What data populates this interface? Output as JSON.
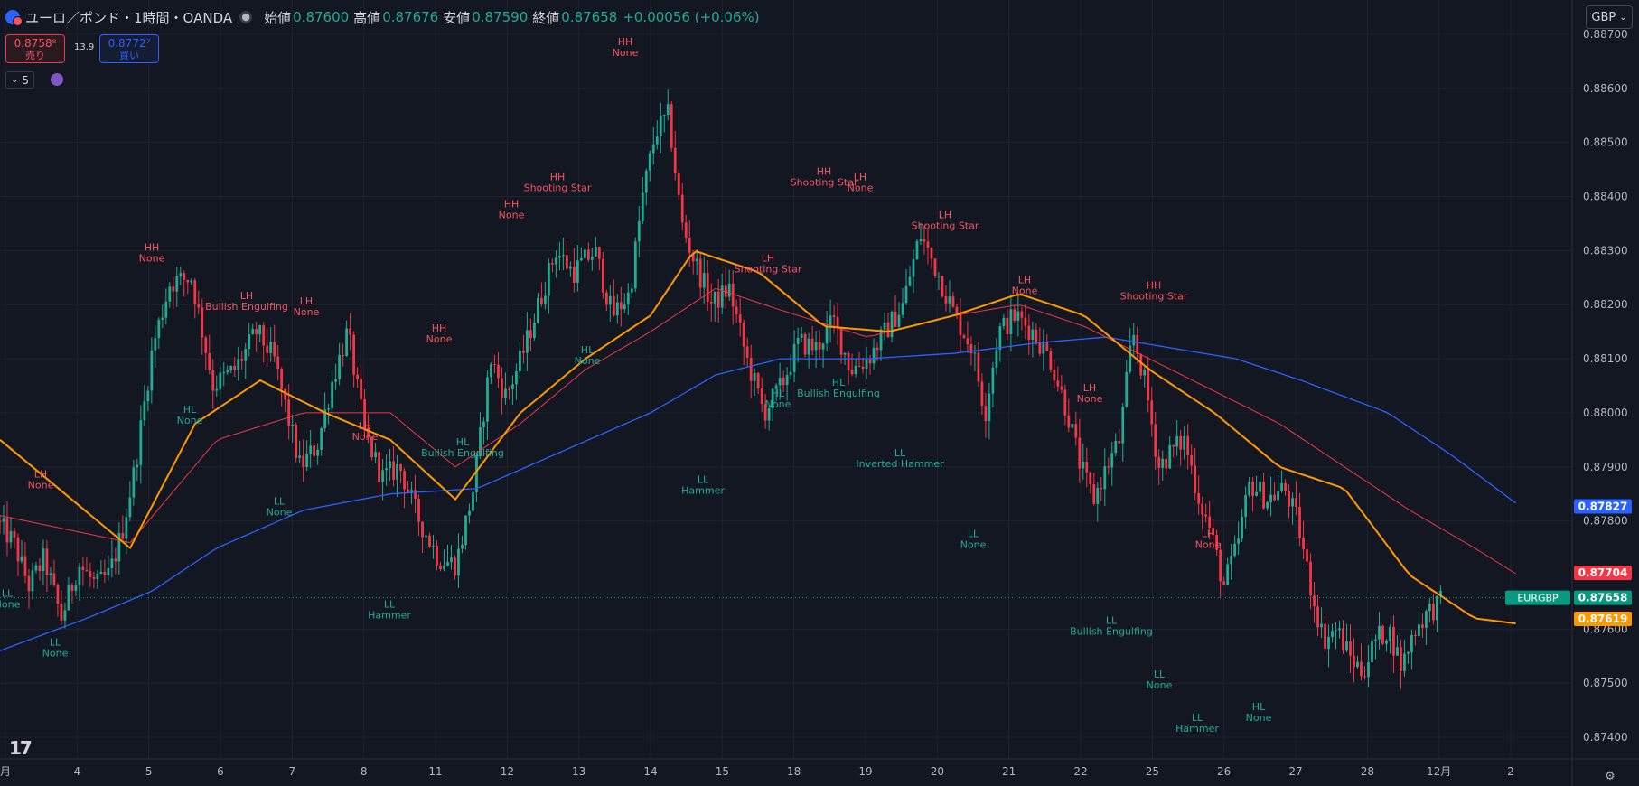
{
  "header": {
    "title": "ユーロ／ポンド・1時間・OANDA",
    "open_label": "始値",
    "open": "0.87600",
    "high_label": "高値",
    "high": "0.87676",
    "low_label": "安値",
    "low": "0.87590",
    "close_label": "終値",
    "close": "0.87658",
    "change": "+0.00056 (+0.06%)"
  },
  "trade": {
    "sell_price": "0.8758⁸",
    "sell_label": "売り",
    "spread": "13.9",
    "buy_price": "0.8772⁷",
    "buy_label": "買い"
  },
  "indicator_toggle": "5",
  "currency": "GBP",
  "colors": {
    "background": "#131722",
    "grid": "#1e222d",
    "up": "#22ab94",
    "down": "#f23645",
    "ema_fast": "#ff9800",
    "ema_mid": "#f23645",
    "ema_slow": "#2962ff",
    "label_high": "#f7525f",
    "label_low": "#22ab94"
  },
  "icons": [
    "symbol-flag-icon",
    "chevron-down-icon",
    "indicator-icon",
    "tradingview-logo-icon",
    "settings-icon"
  ],
  "chart_data": {
    "type": "candlestick",
    "symbol": "EURGBP",
    "timeframe": "1時間",
    "ylim": [
      0.8736,
      0.8875
    ],
    "y_ticks": [
      "0.88700",
      "0.88600",
      "0.88500",
      "0.88400",
      "0.88300",
      "0.88200",
      "0.88100",
      "0.88000",
      "0.87900",
      "0.87800",
      "0.87600",
      "0.87500",
      "0.87400"
    ],
    "x_ticks": [
      "月",
      "4",
      "5",
      "6",
      "7",
      "8",
      "11",
      "12",
      "13",
      "14",
      "15",
      "18",
      "19",
      "20",
      "21",
      "22",
      "25",
      "26",
      "27",
      "28",
      "12月",
      "2"
    ],
    "n_bars": 400,
    "price_labels": [
      {
        "text": "0.87827",
        "value": 0.87827,
        "color": "#2962ff"
      },
      {
        "text": "0.87704",
        "value": 0.87704,
        "color": "#f23645"
      },
      {
        "symbol": "EURGBP",
        "text": "0.87658",
        "value": 0.87658,
        "color": "#089981"
      },
      {
        "text": "0.87619",
        "value": 0.87619,
        "color": "#ff9800"
      }
    ],
    "current_price": 0.87658,
    "price_path": [
      [
        0,
        0.878
      ],
      [
        8,
        0.8776
      ],
      [
        15,
        0.8768
      ],
      [
        22,
        0.8773
      ],
      [
        30,
        0.8762
      ],
      [
        38,
        0.8772
      ],
      [
        46,
        0.8768
      ],
      [
        52,
        0.877
      ],
      [
        58,
        0.8778
      ],
      [
        64,
        0.879
      ],
      [
        72,
        0.8812
      ],
      [
        80,
        0.8824
      ],
      [
        90,
        0.8825
      ],
      [
        100,
        0.8805
      ],
      [
        110,
        0.8808
      ],
      [
        120,
        0.8815
      ],
      [
        128,
        0.881
      ],
      [
        134,
        0.88
      ],
      [
        140,
        0.879
      ],
      [
        148,
        0.8794
      ],
      [
        155,
        0.8806
      ],
      [
        162,
        0.8815
      ],
      [
        170,
        0.8796
      ],
      [
        178,
        0.8788
      ],
      [
        186,
        0.879
      ],
      [
        194,
        0.8781
      ],
      [
        204,
        0.8773
      ],
      [
        212,
        0.8772
      ],
      [
        220,
        0.8786
      ],
      [
        228,
        0.881
      ],
      [
        235,
        0.8803
      ],
      [
        242,
        0.881
      ],
      [
        250,
        0.882
      ],
      [
        258,
        0.883
      ],
      [
        266,
        0.8826
      ],
      [
        276,
        0.883
      ],
      [
        284,
        0.8818
      ],
      [
        292,
        0.8822
      ],
      [
        298,
        0.884
      ],
      [
        304,
        0.8852
      ],
      [
        310,
        0.8855
      ],
      [
        316,
        0.8835
      ],
      [
        322,
        0.8828
      ],
      [
        330,
        0.882
      ],
      [
        338,
        0.8823
      ],
      [
        346,
        0.881
      ],
      [
        354,
        0.88
      ],
      [
        362,
        0.8805
      ],
      [
        370,
        0.8813
      ],
      [
        378,
        0.8812
      ],
      [
        386,
        0.8817
      ],
      [
        394,
        0.8808
      ],
      [
        402,
        0.881
      ],
      [
        410,
        0.8815
      ],
      [
        418,
        0.882
      ],
      [
        426,
        0.8833
      ],
      [
        434,
        0.8826
      ],
      [
        442,
        0.8818
      ],
      [
        450,
        0.8812
      ],
      [
        456,
        0.88
      ],
      [
        462,
        0.8815
      ],
      [
        470,
        0.8818
      ],
      [
        478,
        0.8815
      ],
      [
        486,
        0.881
      ],
      [
        494,
        0.88
      ],
      [
        500,
        0.879
      ],
      [
        506,
        0.8784
      ],
      [
        512,
        0.879
      ],
      [
        518,
        0.8795
      ],
      [
        524,
        0.8815
      ],
      [
        530,
        0.8805
      ],
      [
        536,
        0.879
      ],
      [
        542,
        0.8793
      ],
      [
        548,
        0.8795
      ],
      [
        554,
        0.8785
      ],
      [
        560,
        0.8778
      ],
      [
        566,
        0.8768
      ],
      [
        572,
        0.8775
      ],
      [
        578,
        0.8787
      ],
      [
        586,
        0.8784
      ],
      [
        594,
        0.8786
      ],
      [
        600,
        0.878
      ],
      [
        606,
        0.8768
      ],
      [
        612,
        0.8758
      ],
      [
        618,
        0.876
      ],
      [
        624,
        0.8755
      ],
      [
        630,
        0.8752
      ],
      [
        636,
        0.8758
      ],
      [
        642,
        0.876
      ],
      [
        648,
        0.8753
      ],
      [
        654,
        0.876
      ],
      [
        660,
        0.8763
      ],
      [
        666,
        0.8765
      ]
    ],
    "ema_fast": [
      [
        0,
        0.8795
      ],
      [
        60,
        0.8775
      ],
      [
        90,
        0.8798
      ],
      [
        120,
        0.8806
      ],
      [
        150,
        0.88
      ],
      [
        180,
        0.8795
      ],
      [
        210,
        0.8784
      ],
      [
        240,
        0.88
      ],
      [
        270,
        0.881
      ],
      [
        300,
        0.8818
      ],
      [
        320,
        0.883
      ],
      [
        350,
        0.8826
      ],
      [
        380,
        0.8816
      ],
      [
        410,
        0.8815
      ],
      [
        440,
        0.8818
      ],
      [
        470,
        0.8822
      ],
      [
        500,
        0.8818
      ],
      [
        530,
        0.8808
      ],
      [
        560,
        0.88
      ],
      [
        590,
        0.879
      ],
      [
        620,
        0.8786
      ],
      [
        650,
        0.877
      ],
      [
        680,
        0.8762
      ],
      [
        700,
        0.8761
      ]
    ],
    "ema_mid": [
      [
        0,
        0.8781
      ],
      [
        60,
        0.8776
      ],
      [
        100,
        0.8795
      ],
      [
        140,
        0.88
      ],
      [
        180,
        0.88
      ],
      [
        210,
        0.879
      ],
      [
        240,
        0.8798
      ],
      [
        270,
        0.8808
      ],
      [
        300,
        0.8815
      ],
      [
        330,
        0.8823
      ],
      [
        360,
        0.8819
      ],
      [
        400,
        0.8814
      ],
      [
        440,
        0.8818
      ],
      [
        470,
        0.882
      ],
      [
        500,
        0.8816
      ],
      [
        530,
        0.881
      ],
      [
        560,
        0.8804
      ],
      [
        590,
        0.8798
      ],
      [
        620,
        0.879
      ],
      [
        650,
        0.8782
      ],
      [
        680,
        0.8775
      ],
      [
        700,
        0.877
      ]
    ],
    "ema_slow": [
      [
        0,
        0.8756
      ],
      [
        40,
        0.8762
      ],
      [
        70,
        0.8767
      ],
      [
        100,
        0.8775
      ],
      [
        140,
        0.8782
      ],
      [
        180,
        0.8785
      ],
      [
        220,
        0.8786
      ],
      [
        260,
        0.8793
      ],
      [
        300,
        0.88
      ],
      [
        330,
        0.8807
      ],
      [
        360,
        0.881
      ],
      [
        400,
        0.881
      ],
      [
        440,
        0.8811
      ],
      [
        480,
        0.8813
      ],
      [
        510,
        0.8814
      ],
      [
        540,
        0.8812
      ],
      [
        570,
        0.881
      ],
      [
        600,
        0.8806
      ],
      [
        640,
        0.88
      ],
      [
        670,
        0.8792
      ],
      [
        700,
        0.8783
      ]
    ],
    "annotations": [
      {
        "kind": "high",
        "line1": "LH",
        "line2": "None",
        "x": 45,
        "y": 0.8788
      },
      {
        "kind": "low",
        "line1": "LL",
        "line2": "None",
        "x": 8,
        "y": 0.8766
      },
      {
        "kind": "low",
        "line1": "LL",
        "line2": "None",
        "x": 61,
        "y": 0.8757
      },
      {
        "kind": "high",
        "line1": "HH",
        "line2": "None",
        "x": 168,
        "y": 0.883
      },
      {
        "kind": "low",
        "line1": "HL",
        "line2": "None",
        "x": 210,
        "y": 0.88
      },
      {
        "kind": "high",
        "line1": "LH",
        "line2": "Bullish Engulfing",
        "x": 273,
        "y": 0.8821
      },
      {
        "kind": "low",
        "line1": "LL",
        "line2": "None",
        "x": 309,
        "y": 0.8783
      },
      {
        "kind": "high",
        "line1": "LH",
        "line2": "None",
        "x": 339,
        "y": 0.882
      },
      {
        "kind": "high",
        "line1": "LH",
        "line2": "None",
        "x": 404,
        "y": 0.8797
      },
      {
        "kind": "low",
        "line1": "LL",
        "line2": "Hammer",
        "x": 431,
        "y": 0.8764
      },
      {
        "kind": "high",
        "line1": "HH",
        "line2": "None",
        "x": 486,
        "y": 0.8815
      },
      {
        "kind": "low",
        "line1": "HL",
        "line2": "Bullish Engulfing",
        "x": 512,
        "y": 0.8794
      },
      {
        "kind": "high",
        "line1": "HH",
        "line2": "None",
        "x": 566,
        "y": 0.8838
      },
      {
        "kind": "high",
        "line1": "HH",
        "line2": "Shooting Star",
        "x": 617,
        "y": 0.8843
      },
      {
        "kind": "low",
        "line1": "HL",
        "line2": "None",
        "x": 650,
        "y": 0.8811
      },
      {
        "kind": "high",
        "line1": "HH",
        "line2": "None",
        "x": 692,
        "y": 0.8868
      },
      {
        "kind": "low",
        "line1": "LL",
        "line2": "Hammer",
        "x": 778,
        "y": 0.8787
      },
      {
        "kind": "high",
        "line1": "LH",
        "line2": "Shooting Star",
        "x": 850,
        "y": 0.8828
      },
      {
        "kind": "low",
        "line1": "HL",
        "line2": "None",
        "x": 861,
        "y": 0.8803
      },
      {
        "kind": "high",
        "line1": "HH",
        "line2": "Shooting Star",
        "x": 912,
        "y": 0.8844
      },
      {
        "kind": "high",
        "line1": "LH",
        "line2": "None",
        "x": 952,
        "y": 0.8843
      },
      {
        "kind": "low",
        "line1": "HL",
        "line2": "Bullish Engulfing",
        "x": 928,
        "y": 0.8805
      },
      {
        "kind": "high",
        "line1": "LH",
        "line2": "Shooting Star",
        "x": 1046,
        "y": 0.8836
      },
      {
        "kind": "low",
        "line1": "LL",
        "line2": "Inverted Hammer",
        "x": 996,
        "y": 0.8792
      },
      {
        "kind": "low",
        "line1": "LL",
        "line2": "None",
        "x": 1077,
        "y": 0.8777
      },
      {
        "kind": "high",
        "line1": "LH",
        "line2": "None",
        "x": 1134,
        "y": 0.8824
      },
      {
        "kind": "high",
        "line1": "LH",
        "line2": "None",
        "x": 1206,
        "y": 0.8804
      },
      {
        "kind": "low",
        "line1": "LL",
        "line2": "Bullish Engulfing",
        "x": 1230,
        "y": 0.8761
      },
      {
        "kind": "high",
        "line1": "HH",
        "line2": "Shooting Star",
        "x": 1277,
        "y": 0.8823
      },
      {
        "kind": "low",
        "line1": "LL",
        "line2": "None",
        "x": 1283,
        "y": 0.8751
      },
      {
        "kind": "high",
        "line1": "LH",
        "line2": "None",
        "x": 1337,
        "y": 0.8777
      },
      {
        "kind": "low",
        "line1": "LL",
        "line2": "Hammer",
        "x": 1325,
        "y": 0.8743
      },
      {
        "kind": "low",
        "line1": "HL",
        "line2": "None",
        "x": 1393,
        "y": 0.8745
      }
    ]
  }
}
